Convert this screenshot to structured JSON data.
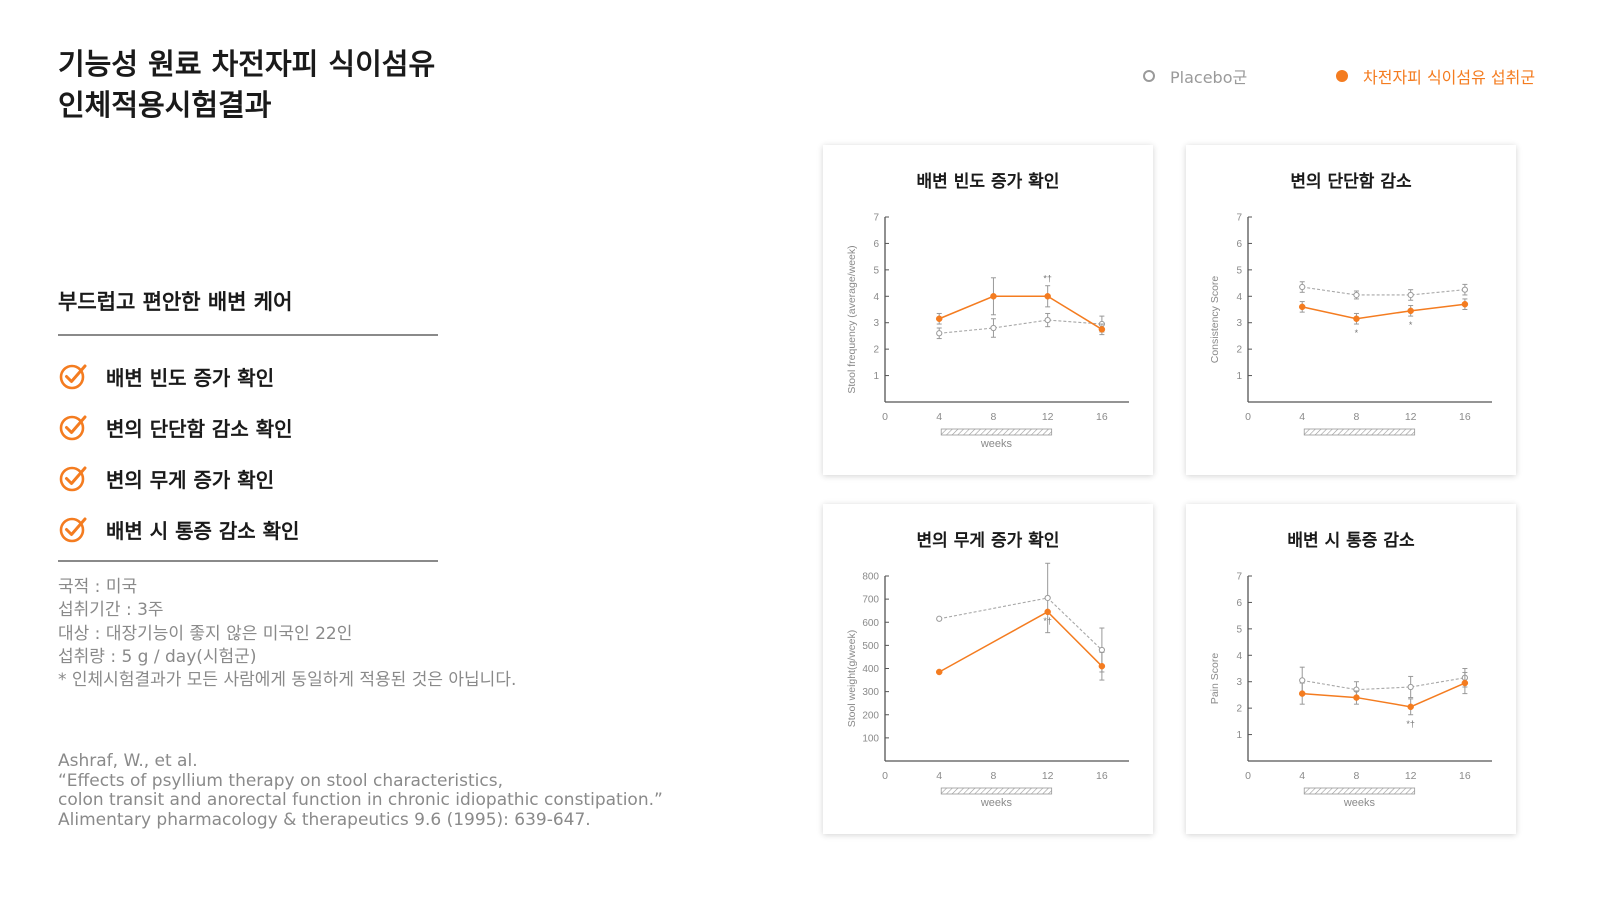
{
  "page": {
    "title_lines": [
      "기능성 원료 차전자피 식이섬유",
      "인체적용시험결과"
    ],
    "legend": {
      "placebo": "Placebo군",
      "psyllium": "차전자피 식이섬유 섭취군"
    },
    "subtitle": "부드럽고 편안한 배변 케어",
    "checklist": [
      "배변 빈도 증가 확인",
      "변의 단단함 감소 확인",
      "변의 무게 증가 확인",
      "배변 시 통증 감소 확인"
    ],
    "info": [
      "국적 : 미국",
      "섭취기간 : 3주",
      "대상 : 대장기능이 좋지 않은 미국인 22인",
      "섭취량 : 5 g / day(시험군)",
      "* 인체시험결과가 모든 사람에게 동일하게 적용된 것은 아닙니다."
    ],
    "citation": [
      "Ashraf, W., et al.",
      "“Effects of psyllium therapy on stool characteristics,",
      "colon transit and anorectal function in chronic idiopathic constipation.”",
      "Alimentary pharmacology & therapeutics 9.6 (1995): 639-647."
    ]
  },
  "colors": {
    "accent": "#f47c20",
    "placebo": "#9a9a9a",
    "text": "#1a1a1a",
    "muted": "#8a8a8a"
  },
  "chart_data": [
    {
      "type": "line",
      "title": "배변 빈도 증가 확인",
      "xlabel": "weeks",
      "ylabel": "Stool frequency (average/week)",
      "x": [
        4,
        8,
        12,
        16
      ],
      "xlim": [
        0,
        18
      ],
      "ylim": [
        0,
        7
      ],
      "xticks": [
        0,
        4,
        8,
        12,
        16
      ],
      "yticks": [
        1,
        2,
        3,
        4,
        5,
        6,
        7
      ],
      "series": [
        {
          "name": "Placebo군",
          "values": [
            2.6,
            2.8,
            3.1,
            2.95
          ],
          "errors": [
            0.2,
            0.35,
            0.25,
            0.3
          ]
        },
        {
          "name": "차전자피 식이섬유 섭취군",
          "values": [
            3.15,
            4.0,
            4.0,
            2.75
          ],
          "errors": [
            0.2,
            0.7,
            0.4,
            0.2
          ]
        }
      ],
      "annotations": [
        {
          "x": 12,
          "text": "*†",
          "series": 1
        }
      ],
      "treatment_bar": [
        4,
        12
      ],
      "grid": false
    },
    {
      "type": "line",
      "title": "변의 단단함 감소",
      "xlabel": "",
      "ylabel": "Consistency Score",
      "x": [
        4,
        8,
        12,
        16
      ],
      "xlim": [
        0,
        18
      ],
      "ylim": [
        0,
        7
      ],
      "xticks": [
        0,
        4,
        8,
        12,
        16
      ],
      "yticks": [
        1,
        2,
        3,
        4,
        5,
        6,
        7
      ],
      "series": [
        {
          "name": "Placebo군",
          "values": [
            4.35,
            4.05,
            4.05,
            4.25
          ],
          "errors": [
            0.2,
            0.15,
            0.2,
            0.2
          ]
        },
        {
          "name": "차전자피 식이섬유 섭취군",
          "values": [
            3.6,
            3.15,
            3.45,
            3.7
          ],
          "errors": [
            0.2,
            0.2,
            0.2,
            0.2
          ]
        }
      ],
      "annotations": [
        {
          "x": 8,
          "text": "*",
          "series": 1,
          "below": true
        },
        {
          "x": 12,
          "text": "*",
          "series": 1,
          "below": true
        }
      ],
      "treatment_bar": [
        4,
        12
      ],
      "grid": false
    },
    {
      "type": "line",
      "title": "변의 무게 증가 확인",
      "xlabel": "weeks",
      "ylabel": "Stool weight(g/week)",
      "x": [
        4,
        8,
        12,
        16
      ],
      "xlim": [
        0,
        18
      ],
      "ylim": [
        0,
        800
      ],
      "xticks": [
        0,
        4,
        8,
        12,
        16
      ],
      "yticks": [
        100,
        200,
        300,
        400,
        500,
        600,
        700,
        800
      ],
      "series": [
        {
          "name": "Placebo군",
          "values": [
            615,
            null,
            705,
            480
          ],
          "errors": [
            0,
            0,
            150,
            95
          ]
        },
        {
          "name": "차전자피 식이섬유 섭취군",
          "values": [
            385,
            null,
            645,
            410
          ],
          "errors": [
            0,
            0,
            0,
            60
          ]
        }
      ],
      "annotations": [
        {
          "x": 12,
          "text": "*†",
          "series": 1,
          "below": true
        }
      ],
      "treatment_bar": [
        4,
        12
      ],
      "grid": false
    },
    {
      "type": "line",
      "title": "배변 시 통증 감소",
      "xlabel": "weeks",
      "ylabel": "Pain Score",
      "x": [
        4,
        8,
        12,
        16
      ],
      "xlim": [
        0,
        18
      ],
      "ylim": [
        0,
        7
      ],
      "xticks": [
        0,
        4,
        8,
        12,
        16
      ],
      "yticks": [
        1,
        2,
        3,
        4,
        5,
        6,
        7
      ],
      "series": [
        {
          "name": "Placebo군",
          "values": [
            3.05,
            2.7,
            2.8,
            3.15
          ],
          "errors": [
            0.5,
            0.3,
            0.4,
            0.35
          ]
        },
        {
          "name": "차전자피 식이섬유 섭취군",
          "values": [
            2.55,
            2.4,
            2.05,
            2.95
          ],
          "errors": [
            0.4,
            0.25,
            0.3,
            0.4
          ]
        }
      ],
      "annotations": [
        {
          "x": 12,
          "text": "*†",
          "series": 1,
          "below": true
        }
      ],
      "treatment_bar": [
        4,
        12
      ],
      "grid": false
    }
  ]
}
